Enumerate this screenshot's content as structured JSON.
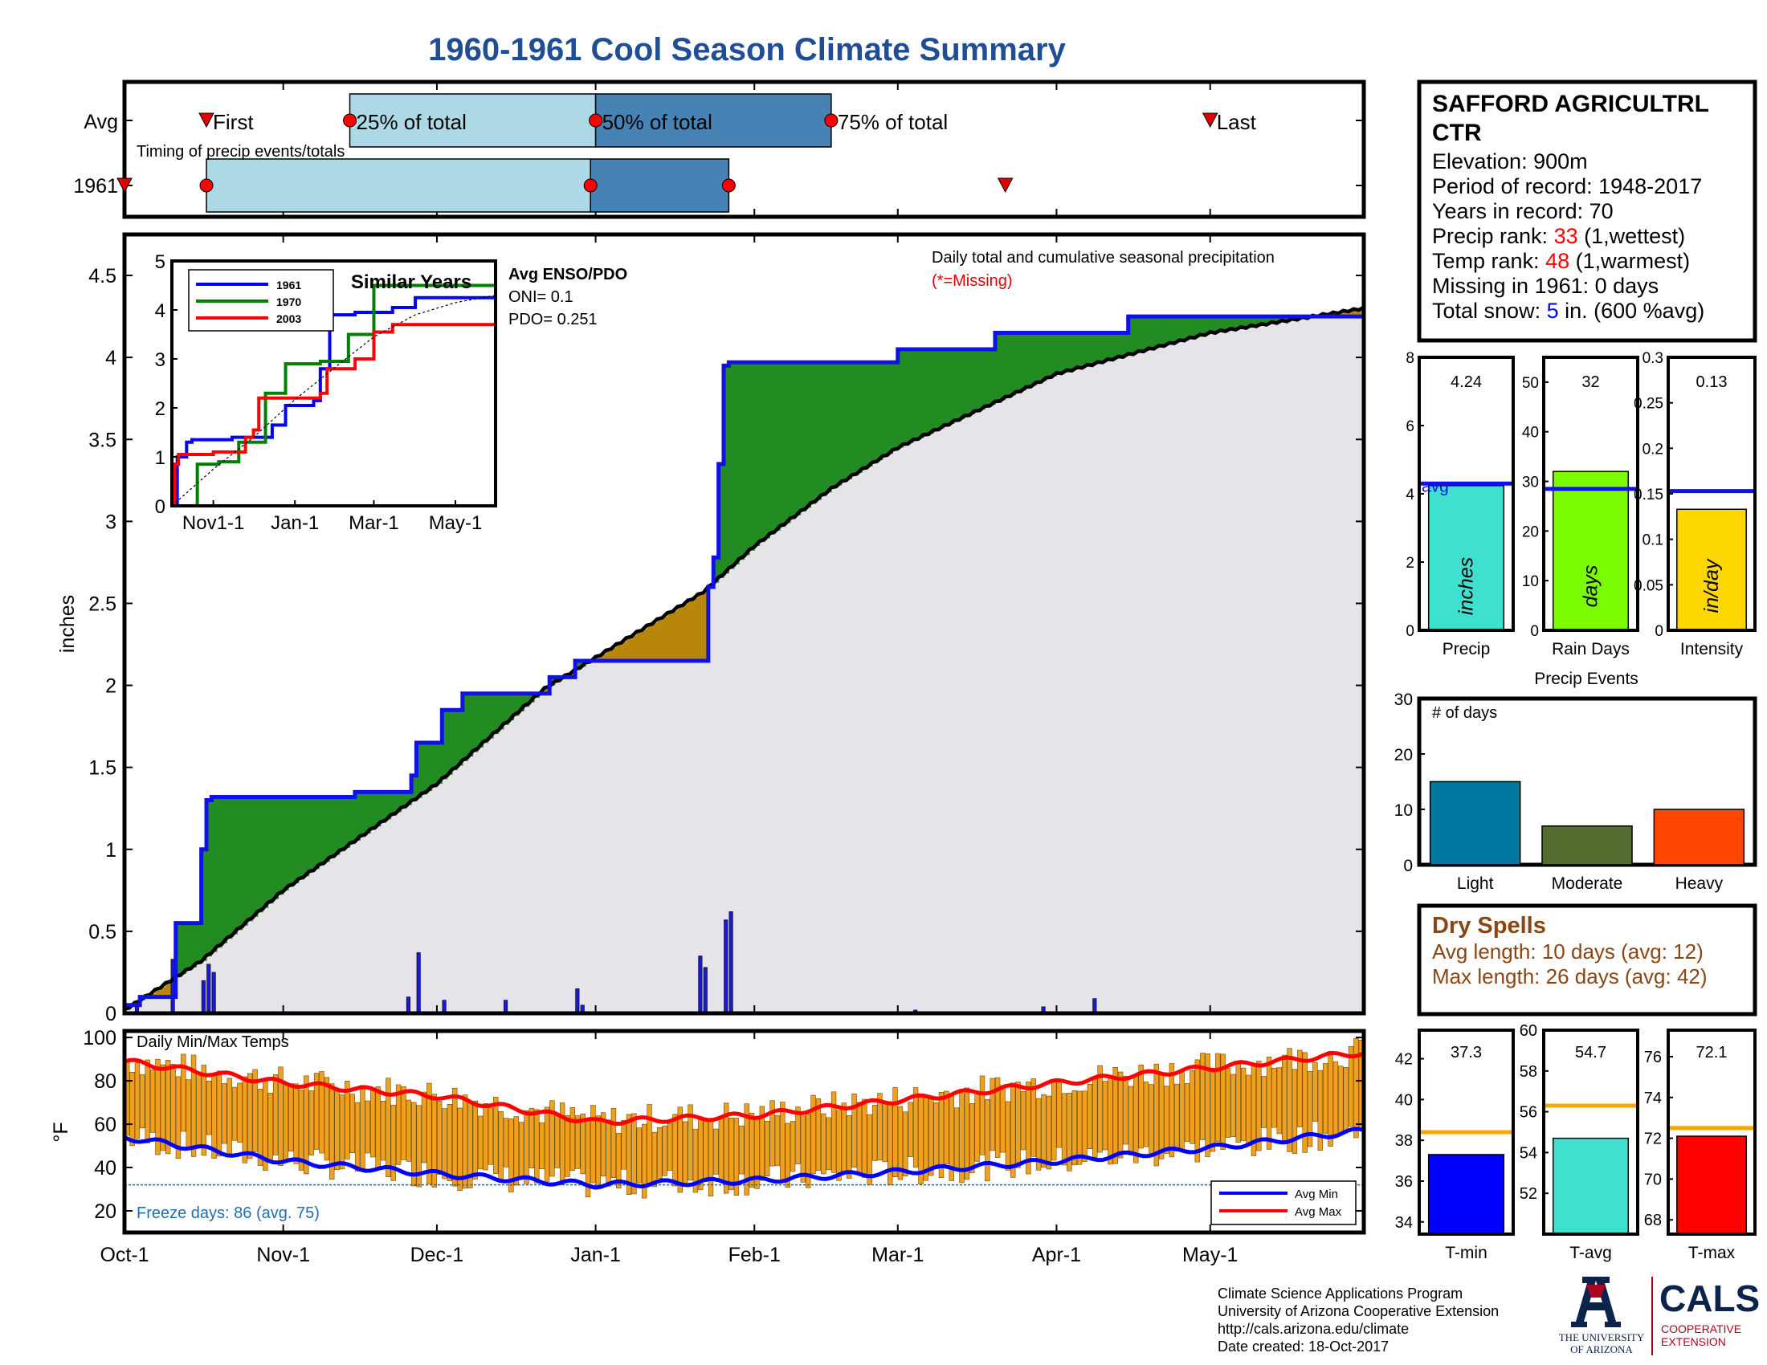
{
  "title": "1960-1961 Cool Season Climate Summary",
  "timing": {
    "row_labels": [
      "Avg",
      "1961"
    ],
    "markers": {
      "first": "First",
      "p25": "25% of total",
      "p50": "50% of total",
      "p75": "75% of total",
      "last": "Last"
    },
    "caption": "Timing of precip events/totals",
    "avg": {
      "first": "Oct-17",
      "p25": "Nov-14",
      "p50": "Jan-1",
      "p75": "Feb-16",
      "last": "May-1"
    },
    "y1961": {
      "first": "Oct-1",
      "p25": "Oct-17",
      "p50": "Dec-31",
      "p75": "Jan-27",
      "last": "Mar-22"
    },
    "colors": {
      "light": "#add8e6",
      "dark": "#4682b4",
      "dot": "#ff0000"
    }
  },
  "station": {
    "name_line1": "SAFFORD AGRICULTRL",
    "name_line2": "CTR",
    "elevation": "Elevation: 900m",
    "period": "Period of record: 1948-2017",
    "years": "Years in record: 70",
    "precip_rank_label": "Precip rank: ",
    "precip_rank_value": "33",
    "precip_rank_note": " (1,wettest)",
    "temp_rank_label": "Temp rank: ",
    "temp_rank_value": "48",
    "temp_rank_note": " (1,warmest)",
    "missing": "Missing in 1961: 0 days",
    "snow_label": "Total snow: ",
    "snow_value": "5",
    "snow_note": " in. (600 %avg)"
  },
  "main_chart": {
    "ylabel": "inches",
    "note": "Daily total and cumulative seasonal precipitation",
    "missing_note": "(*=Missing)",
    "enso_title": "Avg ENSO/PDO",
    "oni": "ONI= 0.1",
    "pdo": "PDO= 0.251",
    "x_ticks": [
      "Oct-1",
      "Nov-1",
      "Dec-1",
      "Jan-1",
      "Feb-1",
      "Mar-1",
      "Apr-1",
      "May-1"
    ]
  },
  "inset": {
    "title": "Similar Years",
    "legend": [
      "1961",
      "1970",
      "2003"
    ],
    "x_ticks": [
      "Nov1-1",
      "Jan-1",
      "Mar-1",
      "May-1"
    ]
  },
  "temp_chart": {
    "ylabel": "°F",
    "title": "Daily Min/Max Temps",
    "freeze": "Freeze days: 86 (avg. 75)",
    "legend": [
      "Avg Min",
      "Avg Max"
    ]
  },
  "summary_bars": [
    {
      "value_label": "4.24",
      "unit": "inches",
      "xlabel": "Precip",
      "value": 4.24,
      "avg": 4.3,
      "ymax": 8,
      "avg_text": "avg",
      "color": "#40e0d0"
    },
    {
      "value_label": "32",
      "unit": "days",
      "xlabel": "Rain Days",
      "value": 32,
      "avg": 28.5,
      "ymax": 55,
      "color": "#7cfc00"
    },
    {
      "value_label": "0.13",
      "unit": "in/day",
      "xlabel": "Intensity",
      "value": 0.133,
      "avg": 0.153,
      "ymax": 0.3,
      "color": "#ffd700"
    }
  ],
  "events": {
    "title": "Precip Events",
    "ylabel": "# of days",
    "categories": [
      "Light",
      "Moderate",
      "Heavy"
    ],
    "values": [
      15,
      7,
      10
    ],
    "colors": [
      "#0077a0",
      "#556b2f",
      "#ff4500"
    ]
  },
  "dry_spells": {
    "title": "Dry Spells",
    "avg": "Avg length: 10 days (avg: 12)",
    "max": "Max length: 26 days (avg: 42)"
  },
  "temp_bars": [
    {
      "value_label": "37.3",
      "xlabel": "T-min",
      "value": 37.3,
      "avg": 38.4,
      "ymin": 33.4,
      "ymax": 43.4,
      "ticks": [
        34,
        36,
        38,
        40,
        42
      ],
      "color": "#0000ff"
    },
    {
      "value_label": "54.7",
      "xlabel": "T-avg",
      "value": 54.7,
      "avg": 56.3,
      "ymin": 50,
      "ymax": 60,
      "ticks": [
        52,
        54,
        56,
        58,
        60
      ],
      "color": "#40e0d0"
    },
    {
      "value_label": "72.1",
      "xlabel": "T-max",
      "value": 72.1,
      "avg": 72.5,
      "ymin": 67.3,
      "ymax": 77.3,
      "ticks": [
        68,
        70,
        72,
        74,
        76
      ],
      "color": "#ff0000"
    }
  ],
  "footer": {
    "line1": "Climate Science Applications Program",
    "line2": "University of Arizona Cooperative Extension",
    "line3": "http://cals.arizona.edu/climate",
    "line4": " Date created: 18-Oct-2017",
    "ua_line1": "THE UNIVERSITY",
    "ua_line2": "OF ARIZONA",
    "cals": "CALS",
    "cals_sub1": "COOPERATIVE",
    "cals_sub2": "EXTENSION"
  },
  "chart_data": [
    {
      "type": "area",
      "title": "Daily total and cumulative seasonal precipitation",
      "ylabel": "inches",
      "ylim": [
        0,
        4.75
      ],
      "x_domain": [
        "Oct-1",
        "May-31"
      ],
      "series": [
        {
          "name": "1961 cumulative",
          "x": [
            "Oct-1",
            "Oct-4",
            "Oct-11",
            "Oct-13",
            "Oct-16",
            "Oct-17",
            "Oct-18",
            "Nov-15",
            "Nov-25",
            "Nov-26",
            "Nov-27",
            "Dec-1",
            "Dec-2",
            "Dec-5",
            "Dec-6",
            "Dec-23",
            "Dec-28",
            "Dec-29",
            "Jan-1",
            "Jan-2",
            "Jan-22",
            "Jan-23",
            "Jan-24",
            "Jan-25",
            "Jan-26",
            "Jan-27",
            "Mar-1",
            "Mar-20",
            "Mar-21",
            "Apr-15",
            "Apr-16",
            "May-31"
          ],
          "y": [
            0.05,
            0.1,
            0.55,
            0.55,
            1.0,
            1.3,
            1.32,
            1.35,
            1.35,
            1.45,
            1.65,
            1.65,
            1.85,
            1.85,
            1.95,
            2.05,
            2.15,
            2.15,
            2.15,
            2.15,
            2.15,
            2.6,
            2.78,
            3.35,
            3.95,
            3.97,
            4.05,
            4.15,
            4.15,
            4.25,
            4.25,
            4.25
          ]
        },
        {
          "name": "Avg cumulative",
          "x": [
            "Oct-1",
            "Oct-16",
            "Nov-1",
            "Dec-1",
            "Dec-22",
            "Jan-1",
            "Jan-22",
            "Feb-1",
            "Feb-16",
            "Mar-1",
            "Apr-1",
            "May-1",
            "May-31"
          ],
          "y": [
            0.02,
            0.32,
            0.75,
            1.4,
            1.98,
            2.17,
            2.57,
            2.85,
            3.2,
            3.45,
            3.9,
            4.15,
            4.3
          ]
        },
        {
          "name": "Daily precip",
          "x": [
            "Oct-3",
            "Oct-10",
            "Oct-16",
            "Oct-17",
            "Oct-18",
            "Nov-25",
            "Nov-27",
            "Dec-2",
            "Dec-14",
            "Dec-28",
            "Dec-29",
            "Jan-21",
            "Jan-22",
            "Jan-26",
            "Jan-27",
            "Mar-4",
            "Mar-29",
            "Apr-8"
          ],
          "y": [
            0.05,
            0.33,
            0.2,
            0.3,
            0.25,
            0.1,
            0.37,
            0.08,
            0.08,
            0.15,
            0.05,
            0.35,
            0.28,
            0.57,
            0.62,
            0.02,
            0.04,
            0.09
          ]
        }
      ]
    },
    {
      "type": "line",
      "title": "Similar Years",
      "ylim": [
        0,
        5
      ],
      "series": [
        {
          "name": "1961",
          "x": [
            "Oct-1",
            "Oct-5",
            "Oct-12",
            "Oct-16",
            "Nov-1",
            "Nov-15",
            "Dec-15",
            "Dec-25",
            "Jan-15",
            "Jan-20",
            "Jan-27",
            "Feb-15",
            "Mar-15",
            "Apr-1",
            "May-31"
          ],
          "y": [
            0,
            1.0,
            1.3,
            1.35,
            1.35,
            1.4,
            1.65,
            2.05,
            2.15,
            2.8,
            3.9,
            3.95,
            4.05,
            4.25,
            4.25
          ]
        },
        {
          "name": "1970",
          "x": [
            "Oct-1",
            "Oct-12",
            "Oct-20",
            "Nov-5",
            "Nov-20",
            "Dec-10",
            "Dec-25",
            "Jan-5",
            "Jan-20",
            "Feb-10",
            "Mar-1",
            "Mar-15",
            "May-31"
          ],
          "y": [
            0,
            0,
            0.85,
            0.9,
            1.3,
            2.3,
            2.9,
            2.9,
            2.95,
            3.5,
            4.5,
            4.5,
            4.55
          ]
        },
        {
          "name": "2003",
          "x": [
            "Oct-1",
            "Oct-3",
            "Oct-6",
            "Nov-1",
            "Nov-25",
            "Dec-1",
            "Dec-5",
            "Jan-1",
            "Jan-20",
            "Jan-25",
            "Feb-15",
            "Mar-1",
            "Mar-15",
            "May-31"
          ],
          "y": [
            0,
            0.85,
            1.05,
            1.1,
            1.4,
            1.55,
            2.2,
            2.2,
            2.3,
            2.8,
            3.0,
            3.55,
            3.7,
            3.7
          ]
        },
        {
          "name": "avg",
          "x": [
            "Oct-1",
            "Nov-1",
            "Dec-1",
            "Jan-1",
            "Feb-1",
            "Mar-1",
            "Apr-1",
            "May-1",
            "May-31"
          ],
          "y": [
            0,
            0.75,
            1.4,
            2.17,
            2.85,
            3.45,
            3.9,
            4.15,
            4.3
          ]
        }
      ]
    },
    {
      "type": "bar",
      "title": "Daily Min/Max Temps",
      "ylabel": "°F",
      "ylim": [
        10,
        103
      ],
      "series": [
        {
          "name": "Avg Max",
          "x": [
            "Oct-1",
            "Nov-1",
            "Dec-1",
            "Jan-1",
            "Feb-1",
            "Mar-1",
            "Apr-1",
            "May-1",
            "May-31"
          ],
          "y": [
            89,
            79,
            73,
            61,
            64,
            71,
            79,
            86,
            93
          ]
        },
        {
          "name": "Avg Min",
          "x": [
            "Oct-1",
            "Nov-1",
            "Dec-1",
            "Jan-1",
            "Feb-1",
            "Mar-1",
            "Apr-1",
            "May-1",
            "May-31"
          ],
          "y": [
            54,
            43,
            37,
            32,
            34,
            38,
            43,
            49,
            57
          ]
        }
      ]
    }
  ]
}
